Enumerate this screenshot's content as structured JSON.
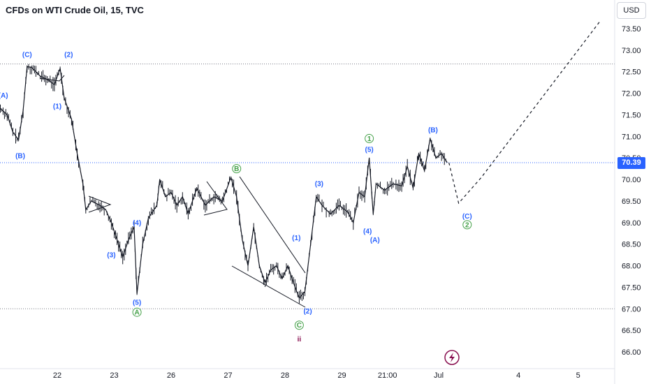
{
  "header": {
    "title": "CFDs on WTI Crude Oil, 15, TVC"
  },
  "price_axis": {
    "currency": "USD",
    "last_price": "70.39"
  },
  "colors": {
    "blue": "#2962ff",
    "green": "#43a047",
    "purple": "#880e4f",
    "candle": "#131722",
    "grid": "#d1d4dc"
  },
  "icons": {
    "event_marker": "lightning-icon"
  },
  "chart_data": {
    "type": "candlestick",
    "ylim": [
      66.0,
      73.5
    ],
    "y_ticks": [
      "73.50",
      "73.00",
      "72.50",
      "72.00",
      "71.50",
      "71.00",
      "70.50",
      "70.00",
      "69.50",
      "69.00",
      "68.50",
      "68.00",
      "67.50",
      "67.00",
      "66.50",
      "66.00"
    ],
    "x_ticks": [
      {
        "label": "22",
        "pos": 1.0
      },
      {
        "label": "23",
        "pos": 2.0
      },
      {
        "label": "26",
        "pos": 3.0
      },
      {
        "label": "27",
        "pos": 4.0
      },
      {
        "label": "28",
        "pos": 5.0
      },
      {
        "label": "29",
        "pos": 6.0
      },
      {
        "label": "21:00",
        "pos": 6.8
      },
      {
        "label": "Jul",
        "pos": 7.7
      },
      {
        "label": "4",
        "pos": 9.1
      },
      {
        "label": "5",
        "pos": 10.15
      }
    ],
    "xlim": [
      0,
      10.6
    ],
    "horizontal_levels": [
      72.68,
      67.0,
      70.39
    ],
    "price_path": [
      [
        0.0,
        71.65
      ],
      [
        0.12,
        71.5
      ],
      [
        0.22,
        71.1
      ],
      [
        0.32,
        70.92
      ],
      [
        0.4,
        71.6
      ],
      [
        0.47,
        72.62
      ],
      [
        0.55,
        72.6
      ],
      [
        0.7,
        72.4
      ],
      [
        0.85,
        72.3
      ],
      [
        0.95,
        72.2
      ],
      [
        1.05,
        72.58
      ],
      [
        1.12,
        71.9
      ],
      [
        1.25,
        71.4
      ],
      [
        1.35,
        70.6
      ],
      [
        1.45,
        69.9
      ],
      [
        1.5,
        69.3
      ],
      [
        1.6,
        69.5
      ],
      [
        1.75,
        69.4
      ],
      [
        1.85,
        69.3
      ],
      [
        1.95,
        69.0
      ],
      [
        2.05,
        68.6
      ],
      [
        2.15,
        68.2
      ],
      [
        2.25,
        68.6
      ],
      [
        2.35,
        68.9
      ],
      [
        2.4,
        67.35
      ],
      [
        2.5,
        68.5
      ],
      [
        2.6,
        69.1
      ],
      [
        2.75,
        69.4
      ],
      [
        2.8,
        70.0
      ],
      [
        2.9,
        69.6
      ],
      [
        3.0,
        69.7
      ],
      [
        3.1,
        69.4
      ],
      [
        3.2,
        69.6
      ],
      [
        3.3,
        69.2
      ],
      [
        3.45,
        69.8
      ],
      [
        3.6,
        69.4
      ],
      [
        3.75,
        69.6
      ],
      [
        3.9,
        69.5
      ],
      [
        4.05,
        70.05
      ],
      [
        4.15,
        69.6
      ],
      [
        4.25,
        68.6
      ],
      [
        4.35,
        68.0
      ],
      [
        4.45,
        68.9
      ],
      [
        4.55,
        68.0
      ],
      [
        4.65,
        67.6
      ],
      [
        4.75,
        67.9
      ],
      [
        4.85,
        68.0
      ],
      [
        4.95,
        67.7
      ],
      [
        5.05,
        68.0
      ],
      [
        5.15,
        67.6
      ],
      [
        5.25,
        67.25
      ],
      [
        5.35,
        67.4
      ],
      [
        5.45,
        68.5
      ],
      [
        5.55,
        69.6
      ],
      [
        5.65,
        69.4
      ],
      [
        5.8,
        69.2
      ],
      [
        5.95,
        69.4
      ],
      [
        6.1,
        69.25
      ],
      [
        6.2,
        69.0
      ],
      [
        6.3,
        69.7
      ],
      [
        6.4,
        69.6
      ],
      [
        6.48,
        70.5
      ],
      [
        6.55,
        69.2
      ],
      [
        6.6,
        69.9
      ],
      [
        6.75,
        69.75
      ],
      [
        6.9,
        69.9
      ],
      [
        7.05,
        69.85
      ],
      [
        7.15,
        70.3
      ],
      [
        7.25,
        69.8
      ],
      [
        7.35,
        70.6
      ],
      [
        7.45,
        70.2
      ],
      [
        7.55,
        70.95
      ],
      [
        7.65,
        70.5
      ],
      [
        7.75,
        70.6
      ],
      [
        7.85,
        70.39
      ]
    ],
    "projection": [
      [
        7.88,
        70.39
      ],
      [
        8.05,
        69.45
      ],
      [
        8.45,
        70.05
      ],
      [
        10.55,
        73.7
      ]
    ],
    "wave_labels": [
      {
        "text": "(A)",
        "x": 0.05,
        "y": 71.95,
        "color": "#2962ff"
      },
      {
        "text": "(B)",
        "x": 0.35,
        "y": 70.55,
        "color": "#2962ff"
      },
      {
        "text": "(C)",
        "x": 0.47,
        "y": 72.9,
        "color": "#2962ff"
      },
      {
        "text": "(2)",
        "x": 1.2,
        "y": 72.9,
        "color": "#2962ff"
      },
      {
        "text": "(1)",
        "x": 1.0,
        "y": 71.7,
        "color": "#2962ff"
      },
      {
        "text": "(3)",
        "x": 1.95,
        "y": 68.25,
        "color": "#2962ff"
      },
      {
        "text": "(4)",
        "x": 2.4,
        "y": 69.0,
        "color": "#2962ff"
      },
      {
        "text": "(5)",
        "x": 2.4,
        "y": 67.15,
        "color": "#2962ff"
      },
      {
        "text": "A",
        "x": 2.4,
        "y": 66.92,
        "color": "#43a047",
        "circle": true
      },
      {
        "text": "B",
        "x": 4.15,
        "y": 70.25,
        "color": "#43a047",
        "circle": true
      },
      {
        "text": "(1)",
        "x": 5.2,
        "y": 68.65,
        "color": "#2962ff"
      },
      {
        "text": "(2)",
        "x": 5.4,
        "y": 66.95,
        "color": "#2962ff"
      },
      {
        "text": "C",
        "x": 5.25,
        "y": 66.62,
        "color": "#43a047",
        "circle": true
      },
      {
        "text": "ii",
        "x": 5.25,
        "y": 66.3,
        "color": "#880e4f"
      },
      {
        "text": "(3)",
        "x": 5.6,
        "y": 69.9,
        "color": "#2962ff"
      },
      {
        "text": "(4)",
        "x": 6.45,
        "y": 68.8,
        "color": "#2962ff"
      },
      {
        "text": "(A)",
        "x": 6.58,
        "y": 68.6,
        "color": "#2962ff"
      },
      {
        "text": "1",
        "x": 6.48,
        "y": 70.95,
        "color": "#43a047",
        "circle": true
      },
      {
        "text": "(5)",
        "x": 6.48,
        "y": 70.7,
        "color": "#2962ff"
      },
      {
        "text": "(B)",
        "x": 7.6,
        "y": 71.15,
        "color": "#2962ff"
      },
      {
        "text": "(C)",
        "x": 8.2,
        "y": 69.15,
        "color": "#2962ff"
      },
      {
        "text": "2",
        "x": 8.2,
        "y": 68.95,
        "color": "#43a047",
        "circle": true
      }
    ]
  }
}
